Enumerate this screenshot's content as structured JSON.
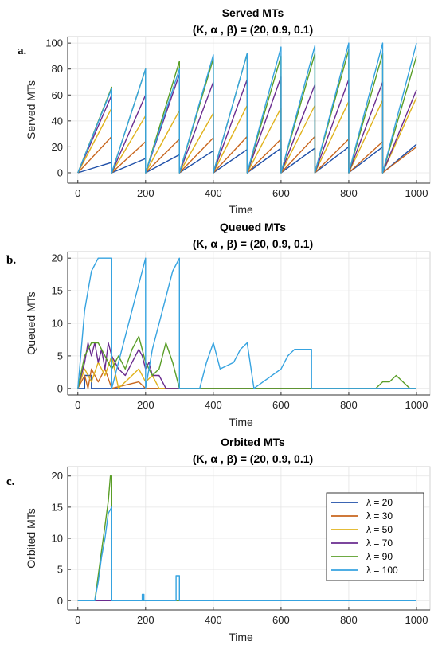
{
  "chart_data": [
    {
      "panel_label": "a.",
      "type": "line",
      "title": "Served MTs",
      "subtitle": "(K, α , β) =  (20, 0.9, 0.1)",
      "xlabel": "Time",
      "ylabel": "Served MTs",
      "xlim": [
        -30,
        1040
      ],
      "ylim": [
        -8,
        105
      ],
      "xticks": [
        0,
        200,
        400,
        600,
        800,
        1000
      ],
      "yticks": [
        0,
        20,
        40,
        60,
        80,
        100
      ],
      "grid": true,
      "series": [
        {
          "name": "λ = 20",
          "color": "#1f4fa8",
          "x": [
            0,
            100,
            100,
            200,
            200,
            300,
            300,
            400,
            400,
            500,
            500,
            600,
            600,
            700,
            700,
            800,
            800,
            900,
            900,
            1000
          ],
          "y": [
            0,
            8,
            0,
            11,
            0,
            14,
            0,
            17,
            0,
            18,
            0,
            19,
            0,
            19,
            0,
            20,
            0,
            20,
            0,
            22
          ]
        },
        {
          "name": "λ = 30",
          "color": "#c8661e",
          "x": [
            0,
            100,
            100,
            200,
            200,
            300,
            300,
            400,
            400,
            500,
            500,
            600,
            600,
            700,
            700,
            800,
            800,
            900,
            900,
            1000
          ],
          "y": [
            0,
            28,
            0,
            24,
            0,
            26,
            0,
            27,
            0,
            28,
            0,
            26,
            0,
            28,
            0,
            26,
            0,
            24,
            0,
            20
          ]
        },
        {
          "name": "λ = 50",
          "color": "#e0b21c",
          "x": [
            0,
            100,
            100,
            200,
            200,
            300,
            300,
            400,
            400,
            500,
            500,
            600,
            600,
            700,
            700,
            800,
            800,
            900,
            900,
            1000
          ],
          "y": [
            0,
            50,
            0,
            44,
            0,
            48,
            0,
            46,
            0,
            52,
            0,
            50,
            0,
            52,
            0,
            55,
            0,
            56,
            0,
            58
          ]
        },
        {
          "name": "λ = 70",
          "color": "#6a2c8f",
          "x": [
            0,
            100,
            100,
            200,
            200,
            300,
            300,
            400,
            400,
            500,
            500,
            600,
            600,
            700,
            700,
            800,
            800,
            900,
            900,
            1000
          ],
          "y": [
            0,
            60,
            0,
            60,
            0,
            76,
            0,
            70,
            0,
            72,
            0,
            74,
            0,
            68,
            0,
            72,
            0,
            70,
            0,
            64
          ]
        },
        {
          "name": "λ = 90",
          "color": "#5a9e28",
          "x": [
            0,
            100,
            100,
            200,
            200,
            300,
            300,
            400,
            400,
            500,
            500,
            600,
            600,
            700,
            700,
            800,
            800,
            900,
            900,
            1000
          ],
          "y": [
            0,
            66,
            0,
            80,
            0,
            86,
            0,
            88,
            0,
            92,
            0,
            90,
            0,
            92,
            0,
            95,
            0,
            92,
            0,
            90
          ]
        },
        {
          "name": "λ = 100",
          "color": "#36a3e0",
          "x": [
            0,
            100,
            100,
            200,
            200,
            300,
            300,
            400,
            400,
            500,
            500,
            600,
            600,
            700,
            700,
            800,
            800,
            900,
            900,
            1000
          ],
          "y": [
            0,
            65,
            0,
            80,
            0,
            80,
            0,
            91,
            0,
            92,
            0,
            97,
            0,
            98,
            0,
            100,
            0,
            100,
            0,
            100
          ]
        }
      ]
    },
    {
      "panel_label": "b.",
      "type": "line",
      "title": "Queued MTs",
      "subtitle": "(K, α , β) =  (20, 0.9, 0.1)",
      "xlabel": "Time",
      "ylabel": "Queued MTs",
      "xlim": [
        -30,
        1040
      ],
      "ylim": [
        -1,
        21
      ],
      "xticks": [
        0,
        200,
        400,
        600,
        800,
        1000
      ],
      "yticks": [
        0,
        5,
        10,
        15,
        20
      ],
      "grid": true,
      "series": [
        {
          "name": "λ = 20",
          "color": "#1f4fa8",
          "x": [
            0,
            20,
            20,
            40,
            40,
            1000
          ],
          "y": [
            0,
            0,
            2,
            2,
            0,
            0
          ]
        },
        {
          "name": "λ = 30",
          "color": "#c8661e",
          "x": [
            0,
            20,
            30,
            40,
            60,
            80,
            100,
            180,
            200,
            1000
          ],
          "y": [
            0,
            2,
            0,
            3,
            1,
            3,
            0,
            1,
            0,
            0
          ]
        },
        {
          "name": "λ = 50",
          "color": "#e0b21c",
          "x": [
            0,
            20,
            40,
            60,
            80,
            100,
            120,
            160,
            180,
            200,
            220,
            240,
            1000
          ],
          "y": [
            0,
            3,
            1,
            4,
            2,
            5,
            0,
            2,
            3,
            1,
            2,
            0,
            0
          ]
        },
        {
          "name": "λ = 70",
          "color": "#6a2c8f",
          "x": [
            0,
            20,
            30,
            40,
            50,
            60,
            70,
            80,
            90,
            100,
            120,
            140,
            160,
            180,
            190,
            200,
            210,
            220,
            240,
            260,
            1000
          ],
          "y": [
            0,
            4,
            7,
            5,
            7,
            4,
            6,
            3,
            7,
            5,
            3,
            2,
            4,
            6,
            5,
            3,
            4,
            2,
            2,
            0,
            0
          ]
        },
        {
          "name": "λ = 90",
          "color": "#5a9e28",
          "x": [
            0,
            20,
            40,
            60,
            80,
            100,
            120,
            140,
            160,
            180,
            200,
            220,
            240,
            260,
            280,
            300,
            320,
            880,
            900,
            920,
            940,
            960,
            980,
            1000
          ],
          "y": [
            0,
            5,
            7,
            7,
            5,
            3,
            5,
            3,
            6,
            8,
            4,
            2,
            3,
            7,
            4,
            0,
            0,
            0,
            1,
            1,
            2,
            1,
            0,
            0
          ]
        },
        {
          "name": "λ = 100",
          "color": "#36a3e0",
          "x": [
            0,
            20,
            40,
            60,
            80,
            100,
            100,
            120,
            140,
            160,
            180,
            200,
            200,
            220,
            240,
            260,
            280,
            300,
            300,
            360,
            380,
            400,
            420,
            460,
            480,
            500,
            520,
            600,
            620,
            640,
            660,
            690,
            690,
            1000
          ],
          "y": [
            0,
            12,
            18,
            20,
            20,
            20,
            0,
            4,
            8,
            12,
            16,
            20,
            0,
            6,
            10,
            14,
            18,
            20,
            0,
            0,
            4,
            7,
            3,
            4,
            6,
            7,
            0,
            3,
            5,
            6,
            6,
            6,
            0,
            0
          ]
        }
      ]
    },
    {
      "panel_label": "c.",
      "type": "line",
      "title": "Orbited MTs",
      "subtitle": "(K, α , β) =  (20, 0.9, 0.1)",
      "xlabel": "Time",
      "ylabel": "Orbited MTs",
      "xlim": [
        -30,
        1040
      ],
      "ylim": [
        -1.5,
        21.5
      ],
      "xticks": [
        0,
        200,
        400,
        600,
        800,
        1000
      ],
      "yticks": [
        0,
        5,
        10,
        15,
        20
      ],
      "grid": true,
      "legend": "right",
      "series": [
        {
          "name": "λ = 20",
          "color": "#1f4fa8",
          "x": [
            0,
            1000
          ],
          "y": [
            0,
            0
          ]
        },
        {
          "name": "λ = 30",
          "color": "#c8661e",
          "x": [
            0,
            1000
          ],
          "y": [
            0,
            0
          ]
        },
        {
          "name": "λ = 50",
          "color": "#e0b21c",
          "x": [
            0,
            1000
          ],
          "y": [
            0,
            0
          ]
        },
        {
          "name": "λ = 70",
          "color": "#6a2c8f",
          "x": [
            0,
            1000
          ],
          "y": [
            0,
            0
          ]
        },
        {
          "name": "λ = 90",
          "color": "#5a9e28",
          "x": [
            0,
            50,
            60,
            70,
            80,
            90,
            96,
            100,
            100,
            1000
          ],
          "y": [
            0,
            0,
            4,
            8,
            12,
            16,
            20,
            20,
            0,
            0
          ]
        },
        {
          "name": "λ = 100",
          "color": "#36a3e0",
          "x": [
            0,
            50,
            60,
            70,
            80,
            90,
            100,
            100,
            190,
            190,
            195,
            195,
            290,
            290,
            300,
            300,
            1000
          ],
          "y": [
            0,
            0,
            3,
            7,
            10,
            14,
            15,
            0,
            0,
            1,
            1,
            0,
            0,
            4,
            4,
            0,
            0
          ]
        }
      ]
    }
  ]
}
